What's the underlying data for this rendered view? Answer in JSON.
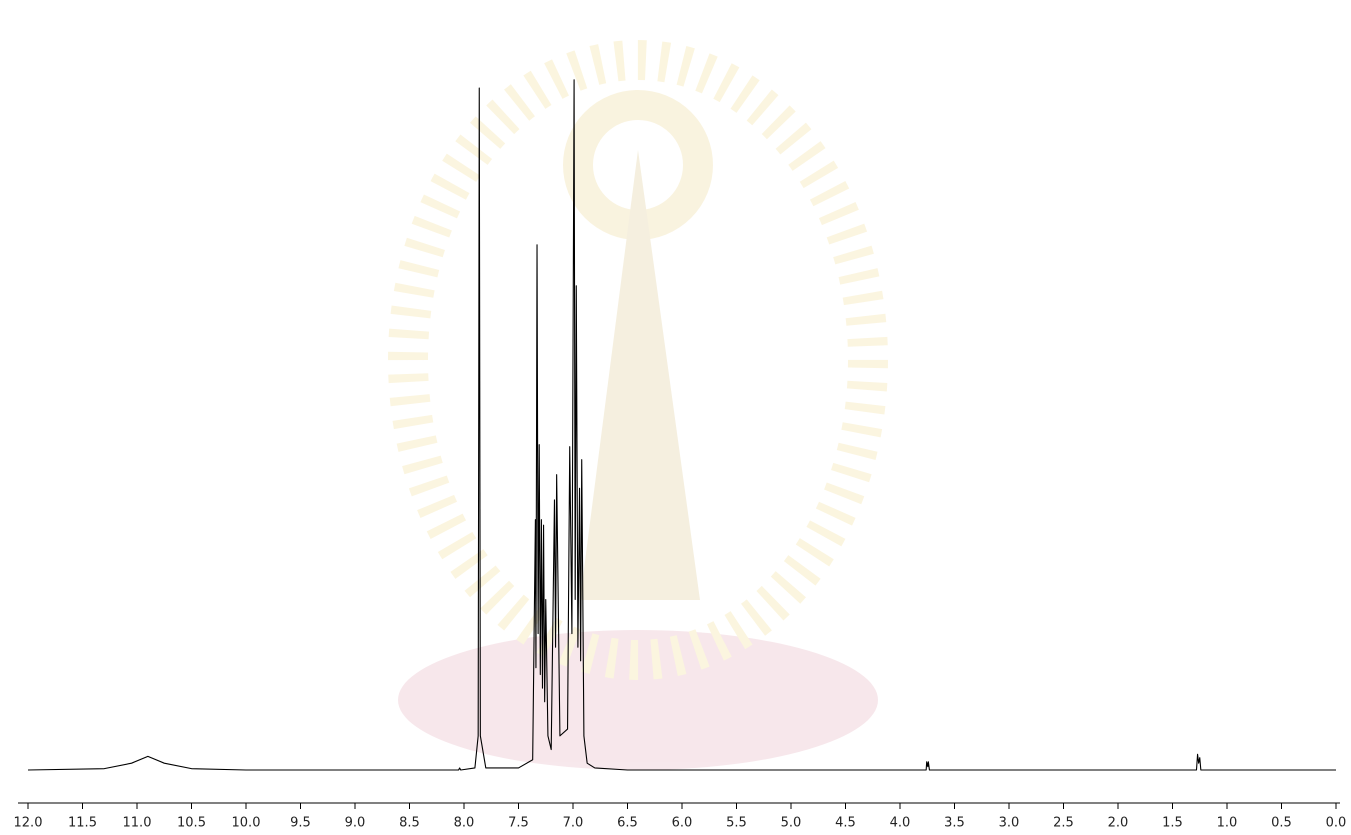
{
  "chart_data": {
    "type": "line",
    "x": [
      12.0,
      11.3,
      11.05,
      10.9,
      10.75,
      10.5,
      10.0,
      8.05,
      8.04,
      8.03,
      7.9,
      7.87,
      7.86,
      7.85,
      7.8,
      7.5,
      7.37,
      7.345,
      7.34,
      7.33,
      7.32,
      7.31,
      7.3,
      7.29,
      7.28,
      7.27,
      7.26,
      7.25,
      7.23,
      7.2,
      7.17,
      7.16,
      7.15,
      7.12,
      7.05,
      7.03,
      7.01,
      6.99,
      6.98,
      6.97,
      6.955,
      6.94,
      6.93,
      6.92,
      6.9,
      6.87,
      6.8,
      6.5,
      3.76,
      3.755,
      3.745,
      3.74,
      3.73,
      1.28,
      1.27,
      1.26,
      1.25,
      1.24,
      0.0
    ],
    "series": [
      {
        "color": "#000000",
        "values": [
          0,
          0.2,
          1,
          2,
          1,
          0.2,
          0,
          0,
          0.3,
          0,
          0.3,
          5,
          100,
          5,
          0.3,
          0.3,
          1.5,
          36.7,
          15,
          77,
          20,
          47.7,
          14,
          36.7,
          12,
          35.9,
          10,
          25,
          5,
          3,
          39.6,
          18,
          43.3,
          5,
          6,
          47.4,
          20,
          101.2,
          25,
          71,
          18,
          41.3,
          16,
          45.5,
          5,
          1,
          0.3,
          0,
          0,
          1.2,
          0.5,
          1.2,
          0,
          0,
          2.3,
          1,
          1.8,
          0,
          0
        ]
      }
    ],
    "xlim": [
      12.0,
      0.0
    ],
    "ylim": [
      0,
      102
    ],
    "xticks": [
      {
        "value": 12,
        "label": "12.0"
      },
      11.5,
      {
        "value": 11,
        "label": "11.0"
      },
      10.5,
      {
        "value": 10,
        "label": "10.0"
      },
      9.5,
      {
        "value": 9,
        "label": "9.0"
      },
      8.5,
      {
        "value": 8,
        "label": "8.0"
      },
      7.5,
      {
        "value": 7,
        "label": "7.0"
      },
      6.5,
      {
        "value": 6,
        "label": "6.0"
      },
      5.5,
      {
        "value": 5,
        "label": "5.0"
      },
      4.5,
      {
        "value": 4,
        "label": "4.0"
      },
      3.5,
      {
        "value": 3,
        "label": "3.0"
      },
      2.5,
      {
        "value": 2,
        "label": "2.0"
      },
      1.5,
      {
        "value": 1,
        "label": "1.0"
      },
      0.5,
      {
        "value": 0,
        "label": "0.0"
      }
    ]
  }
}
